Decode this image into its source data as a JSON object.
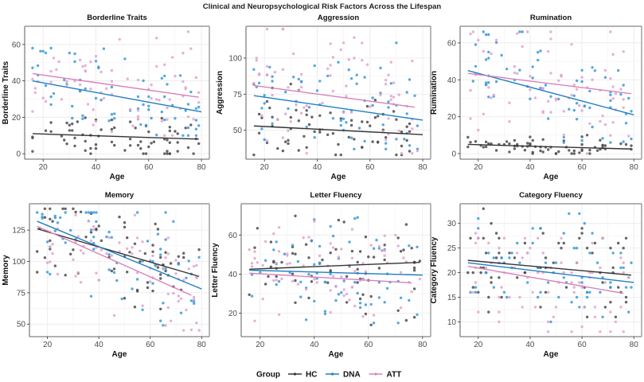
{
  "chart_data": {
    "type": "scatter",
    "title": "Clinical and Neuropsychological Risk Factors Across the Lifespan",
    "legend": {
      "title": "Group",
      "placement": "bottom",
      "entries": [
        {
          "name": "HC",
          "color": "#333333"
        },
        {
          "name": "DNA",
          "color": "#1f7fc0"
        },
        {
          "name": "ATT",
          "color": "#d982b8"
        }
      ]
    },
    "point_colors": {
      "HC": "#4a4a4a",
      "DNA": "#3a9ad9",
      "ATT": "#e2a3cc"
    },
    "panels": [
      {
        "title": "Borderline Traits",
        "xlabel": "Age",
        "ylabel": "Borderline Traits",
        "xlim": [
          13,
          83
        ],
        "ylim": [
          -3,
          70
        ],
        "xticks": [
          20,
          40,
          60,
          80
        ],
        "yticks": [
          0,
          20,
          40,
          60
        ],
        "grid": true,
        "fit_lines": [
          {
            "group": "HC",
            "x": [
              16,
              79
            ],
            "y": [
              11,
              8
            ]
          },
          {
            "group": "DNA",
            "x": [
              16,
              80
            ],
            "y": [
              40,
              23
            ]
          },
          {
            "group": "ATT",
            "x": [
              16,
              79
            ],
            "y": [
              44,
              31
            ]
          }
        ],
        "group_ranges": {
          "HC": [
            0,
            25
          ],
          "DNA": [
            10,
            58
          ],
          "ATT": [
            10,
            67
          ]
        }
      },
      {
        "title": "Aggression",
        "xlabel": "Age",
        "ylabel": "Aggression",
        "xlim": [
          13,
          83
        ],
        "ylim": [
          30,
          122
        ],
        "xticks": [
          20,
          40,
          60,
          80
        ],
        "yticks": [
          50,
          75,
          100
        ],
        "grid": true,
        "fit_lines": [
          {
            "group": "HC",
            "x": [
              16,
              80
            ],
            "y": [
              53,
              47
            ]
          },
          {
            "group": "DNA",
            "x": [
              16,
              80
            ],
            "y": [
              74,
              57
            ]
          },
          {
            "group": "ATT",
            "x": [
              16,
              77
            ],
            "y": [
              81,
              66
            ]
          }
        ],
        "group_ranges": {
          "HC": [
            33,
            82
          ],
          "DNA": [
            37,
            114
          ],
          "ATT": [
            34,
            120
          ]
        }
      },
      {
        "title": "Rumination",
        "xlabel": "Age",
        "ylabel": "Rumination",
        "xlim": [
          13,
          83
        ],
        "ylim": [
          -3,
          69
        ],
        "xticks": [
          20,
          40,
          60,
          80
        ],
        "yticks": [
          0,
          20,
          40,
          60
        ],
        "grid": true,
        "fit_lines": [
          {
            "group": "HC",
            "x": [
              16,
              79
            ],
            "y": [
              5,
              2.5
            ]
          },
          {
            "group": "DNA",
            "x": [
              16,
              80
            ],
            "y": [
              45,
              21
            ]
          },
          {
            "group": "ATT",
            "x": [
              16,
              79
            ],
            "y": [
              43.5,
              32.5
            ]
          }
        ],
        "group_ranges": {
          "HC": [
            0,
            13
          ],
          "DNA": [
            6,
            66
          ],
          "ATT": [
            0,
            66
          ]
        }
      },
      {
        "title": "Memory",
        "xlabel": "Age",
        "ylabel": "Memory",
        "xlim": [
          13,
          83
        ],
        "ylim": [
          40,
          146
        ],
        "xticks": [
          20,
          40,
          60,
          80
        ],
        "yticks": [
          50,
          75,
          100,
          125
        ],
        "grid": true,
        "fit_lines": [
          {
            "group": "HC",
            "x": [
              16,
              79
            ],
            "y": [
              126,
              88
            ]
          },
          {
            "group": "DNA",
            "x": [
              16,
              80
            ],
            "y": [
              132,
              78
            ]
          },
          {
            "group": "ATT",
            "x": [
              16,
              76
            ],
            "y": [
              128,
              73
            ]
          }
        ],
        "group_ranges": {
          "HC": [
            62,
            142
          ],
          "DNA": [
            49,
            139
          ],
          "ATT": [
            45,
            137
          ]
        }
      },
      {
        "title": "Letter Fluency",
        "xlabel": "Age",
        "ylabel": "Letter Fluency",
        "xlim": [
          13,
          83
        ],
        "ylim": [
          8,
          76
        ],
        "xticks": [
          20,
          40,
          60,
          80
        ],
        "yticks": [
          20,
          40,
          60
        ],
        "grid": true,
        "fit_lines": [
          {
            "group": "HC",
            "x": [
              16,
              79
            ],
            "y": [
              42.5,
              46
            ]
          },
          {
            "group": "DNA",
            "x": [
              16,
              80
            ],
            "y": [
              42,
              39.5
            ]
          },
          {
            "group": "ATT",
            "x": [
              16,
              76
            ],
            "y": [
              40.5,
              35.5
            ]
          }
        ],
        "group_ranges": {
          "HC": [
            14,
            73
          ],
          "DNA": [
            15,
            69
          ],
          "ATT": [
            11,
            67
          ]
        }
      },
      {
        "title": "Category Fluency",
        "xlabel": "Age",
        "ylabel": "Category Fluency",
        "xlim": [
          13,
          83
        ],
        "ylim": [
          7,
          34
        ],
        "xticks": [
          20,
          40,
          60,
          80
        ],
        "yticks": [
          10,
          15,
          20,
          25,
          30
        ],
        "grid": true,
        "fit_lines": [
          {
            "group": "HC",
            "x": [
              16,
              79
            ],
            "y": [
              22.5,
              19.5
            ]
          },
          {
            "group": "DNA",
            "x": [
              16,
              80
            ],
            "y": [
              22,
              18
            ]
          },
          {
            "group": "ATT",
            "x": [
              16,
              76
            ],
            "y": [
              21.3,
              15.8
            ]
          }
        ],
        "group_ranges": {
          "HC": [
            11,
            33
          ],
          "DNA": [
            9,
            32
          ],
          "ATT": [
            8,
            29
          ]
        }
      }
    ]
  }
}
